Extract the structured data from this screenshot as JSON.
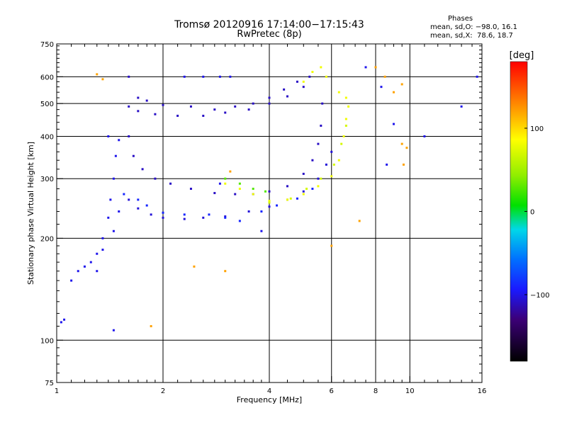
{
  "header": {
    "title": "Tromsø 20120916 17:14:00−17:15:43",
    "subtitle": "RwPretec (8p)",
    "phases_title": "Phases",
    "stats_o": "mean, sd,O: −98.0, 16.1",
    "stats_x": "mean, sd,X:  78.6, 18.7"
  },
  "chart_data": {
    "type": "scatter",
    "title": "Tromsø 20120916 17:14:00−17:15:43",
    "subtitle": "RwPretec (8p)",
    "xlabel": "Frequency [MHz]",
    "ylabel": "Stationary phase Virtual Height [km]",
    "x_scale": "log",
    "y_scale": "log",
    "xlim": [
      1,
      16
    ],
    "ylim": [
      75,
      750
    ],
    "x_ticks": [
      1,
      2,
      4,
      6,
      8,
      10,
      16
    ],
    "x_tick_labels": [
      "1",
      "2",
      "4",
      "6",
      "8",
      "10",
      "16"
    ],
    "y_ticks": [
      75,
      100,
      200,
      300,
      400,
      500,
      600,
      750
    ],
    "y_tick_labels": [
      "75",
      "100",
      "200",
      "300",
      "400",
      "500",
      "600",
      "750"
    ],
    "grid": true,
    "colorbar": {
      "label": "[deg]",
      "range": [
        -180,
        180
      ],
      "ticks": [
        100,
        0,
        -100
      ],
      "tick_labels": [
        "100",
        "0",
        "−100"
      ],
      "colors": [
        "#000000",
        "#5a00a8",
        "#1a1aff",
        "#00aaff",
        "#00e0d0",
        "#00dd44",
        "#c8f000",
        "#ffff00",
        "#ff8800",
        "#ff0000"
      ]
    },
    "series": [
      {
        "phase": -100,
        "points": [
          [
            1.03,
            113
          ],
          [
            1.05,
            115
          ],
          [
            1.1,
            150
          ],
          [
            1.15,
            160
          ],
          [
            1.2,
            165
          ],
          [
            1.25,
            170
          ],
          [
            1.3,
            180
          ],
          [
            1.35,
            200
          ],
          [
            1.4,
            230
          ],
          [
            1.42,
            260
          ],
          [
            1.45,
            300
          ],
          [
            1.47,
            350
          ],
          [
            1.5,
            390
          ],
          [
            1.4,
            400
          ],
          [
            1.3,
            160
          ],
          [
            1.35,
            185
          ],
          [
            1.45,
            210
          ],
          [
            1.5,
            240
          ]
        ]
      },
      {
        "phase": -110,
        "points": [
          [
            1.6,
            600
          ],
          [
            1.7,
            520
          ],
          [
            1.8,
            510
          ],
          [
            2.0,
            495
          ],
          [
            2.4,
            490
          ],
          [
            2.8,
            480
          ],
          [
            3.2,
            490
          ],
          [
            3.6,
            500
          ],
          [
            4.0,
            520
          ],
          [
            4.4,
            550
          ],
          [
            4.8,
            580
          ],
          [
            5.2,
            600
          ]
        ]
      },
      {
        "phase": -110,
        "points": [
          [
            1.6,
            490
          ],
          [
            1.7,
            475
          ],
          [
            1.9,
            465
          ],
          [
            2.2,
            460
          ],
          [
            2.6,
            460
          ],
          [
            3.0,
            470
          ],
          [
            3.5,
            480
          ],
          [
            4.0,
            500
          ],
          [
            4.5,
            525
          ],
          [
            5.0,
            560
          ]
        ]
      },
      {
        "phase": -100,
        "points": [
          [
            2.3,
            600
          ],
          [
            2.6,
            600
          ],
          [
            2.9,
            600
          ],
          [
            3.1,
            600
          ]
        ]
      },
      {
        "phase": -110,
        "points": [
          [
            1.6,
            400
          ],
          [
            1.65,
            350
          ],
          [
            1.75,
            320
          ],
          [
            1.9,
            300
          ],
          [
            2.1,
            290
          ],
          [
            2.4,
            280
          ],
          [
            2.8,
            272
          ],
          [
            3.2,
            270
          ],
          [
            3.6,
            270
          ],
          [
            4.0,
            275
          ],
          [
            4.5,
            285
          ],
          [
            5.0,
            310
          ],
          [
            5.3,
            340
          ],
          [
            5.5,
            380
          ],
          [
            5.6,
            430
          ],
          [
            5.65,
            500
          ]
        ]
      },
      {
        "phase": -105,
        "points": [
          [
            1.6,
            260
          ],
          [
            1.7,
            245
          ],
          [
            1.85,
            235
          ],
          [
            2.0,
            230
          ],
          [
            2.3,
            228
          ],
          [
            2.6,
            230
          ],
          [
            3.0,
            232
          ],
          [
            3.5,
            240
          ],
          [
            4.0,
            248
          ],
          [
            4.5,
            260
          ],
          [
            5.0,
            275
          ],
          [
            5.5,
            300
          ],
          [
            5.8,
            330
          ],
          [
            6.0,
            360
          ]
        ]
      },
      {
        "phase": -90,
        "points": [
          [
            1.55,
            270
          ],
          [
            1.7,
            260
          ],
          [
            1.8,
            250
          ],
          [
            2.0,
            238
          ],
          [
            2.3,
            235
          ],
          [
            2.7,
            235
          ],
          [
            3.0,
            230
          ],
          [
            3.3,
            225
          ],
          [
            3.8,
            240
          ],
          [
            4.2,
            250
          ],
          [
            4.8,
            262
          ],
          [
            5.3,
            280
          ]
        ]
      },
      {
        "phase": 80,
        "points": [
          [
            3.0,
            290
          ],
          [
            3.3,
            280
          ],
          [
            3.6,
            270
          ],
          [
            4.0,
            258
          ],
          [
            4.5,
            260
          ],
          [
            5.0,
            270
          ],
          [
            5.5,
            285
          ],
          [
            6.0,
            305
          ],
          [
            6.3,
            340
          ],
          [
            6.5,
            400
          ],
          [
            6.6,
            450
          ],
          [
            6.7,
            490
          ]
        ]
      },
      {
        "phase": 70,
        "points": [
          [
            4.0,
            255
          ],
          [
            4.6,
            262
          ],
          [
            5.1,
            280
          ],
          [
            5.6,
            300
          ],
          [
            6.1,
            330
          ],
          [
            6.4,
            380
          ],
          [
            6.6,
            430
          ]
        ]
      },
      {
        "phase": 30,
        "points": [
          [
            3.0,
            300
          ],
          [
            3.3,
            290
          ],
          [
            3.6,
            280
          ],
          [
            3.9,
            275
          ]
        ]
      },
      {
        "phase": 80,
        "points": [
          [
            5.0,
            580
          ],
          [
            5.3,
            620
          ],
          [
            5.6,
            640
          ],
          [
            5.8,
            600
          ],
          [
            6.3,
            540
          ],
          [
            6.6,
            520
          ]
        ]
      },
      {
        "phase": 120,
        "points": [
          [
            1.3,
            610
          ],
          [
            1.35,
            590
          ],
          [
            1.85,
            110
          ],
          [
            2.45,
            165
          ],
          [
            3.0,
            160
          ],
          [
            3.1,
            315
          ],
          [
            8.0,
            640
          ],
          [
            8.5,
            600
          ],
          [
            9.0,
            540
          ],
          [
            9.5,
            570
          ],
          [
            9.6,
            330
          ],
          [
            9.5,
            380
          ],
          [
            9.8,
            370
          ],
          [
            7.2,
            225
          ],
          [
            6.0,
            190
          ]
        ]
      },
      {
        "phase": -100,
        "points": [
          [
            1.45,
            107
          ],
          [
            7.5,
            640
          ],
          [
            8.3,
            560
          ],
          [
            8.6,
            330
          ],
          [
            9.0,
            435
          ],
          [
            11.0,
            400
          ],
          [
            14.0,
            490
          ],
          [
            15.5,
            600
          ],
          [
            3.8,
            210
          ],
          [
            2.9,
            290
          ]
        ]
      }
    ]
  }
}
